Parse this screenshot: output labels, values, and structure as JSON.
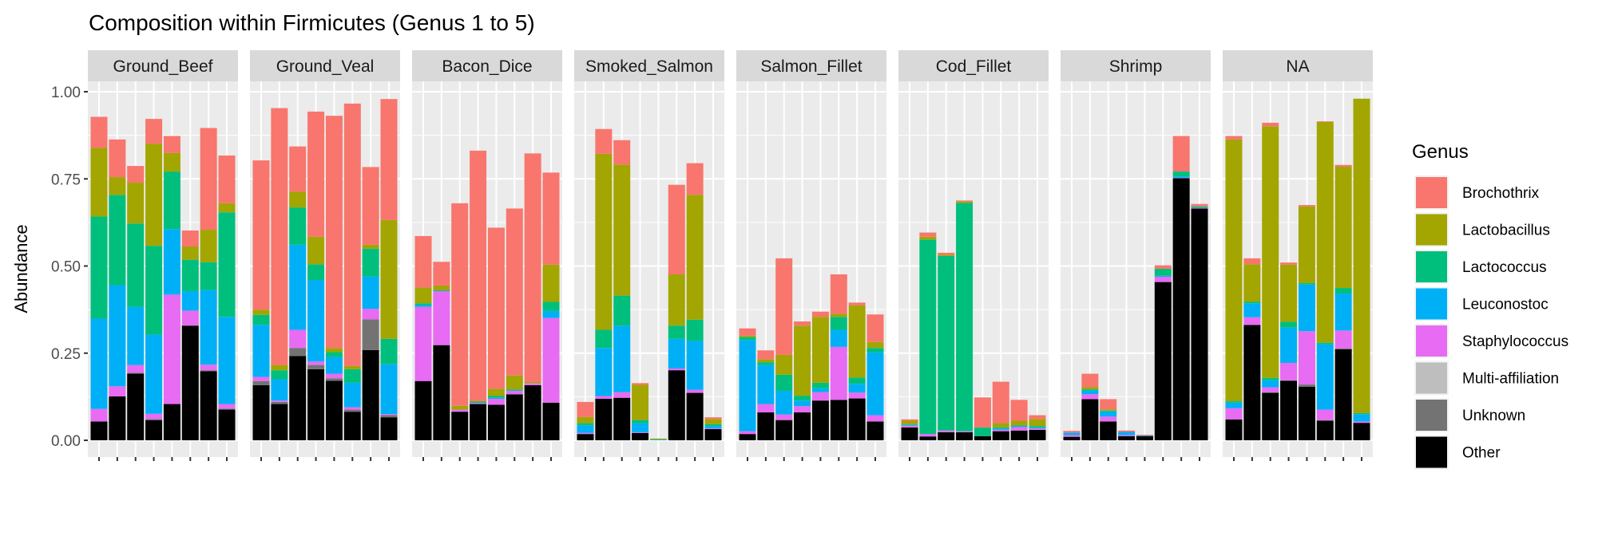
{
  "chart_data": {
    "type": "bar",
    "stacked": true,
    "title": "Composition within Firmicutes (Genus 1 to 5)",
    "xlabel": "",
    "ylabel": "Abundance",
    "ylim": [
      0,
      1
    ],
    "yticks": [
      "0.00",
      "0.25",
      "0.50",
      "0.75",
      "1.00"
    ],
    "ytick_values": [
      0,
      0.25,
      0.5,
      0.75,
      1.0
    ],
    "legend": {
      "title": "Genus",
      "placement": "right",
      "entries": [
        "Brochothrix",
        "Lactobacillus",
        "Lactococcus",
        "Leuconostoc",
        "Staphylococcus",
        "Multi-affiliation",
        "Unknown",
        "Other"
      ]
    },
    "colors": {
      "Brochothrix": "#F8766D",
      "Lactobacillus": "#A3A500",
      "Lactococcus": "#00BF7D",
      "Leuconostoc": "#00B0F6",
      "Staphylococcus": "#E76BF3",
      "Multi-affiliation": "#BEBEBE",
      "Unknown": "#737373",
      "Other": "#000000"
    },
    "stack_order_bottom_up": [
      "Other",
      "Unknown",
      "Multi-affiliation",
      "Staphylococcus",
      "Leuconostoc",
      "Lactococcus",
      "Lactobacillus",
      "Brochothrix"
    ],
    "note": "cumulative abundance at top of each stacked genus segment, bottom-up order",
    "facets": [
      {
        "name": "Ground_Beef",
        "bars": [
          [
            0.054,
            0.054,
            0.054,
            0.09,
            0.349,
            0.642,
            0.839,
            0.928
          ],
          [
            0.126,
            0.126,
            0.126,
            0.155,
            0.445,
            0.704,
            0.755,
            0.863
          ],
          [
            0.191,
            0.194,
            0.194,
            0.216,
            0.383,
            0.622,
            0.739,
            0.787
          ],
          [
            0.058,
            0.061,
            0.061,
            0.076,
            0.303,
            0.558,
            0.851,
            0.922
          ],
          [
            0.104,
            0.104,
            0.104,
            0.418,
            0.606,
            0.771,
            0.824,
            0.873
          ],
          [
            0.329,
            0.329,
            0.329,
            0.372,
            0.428,
            0.518,
            0.556,
            0.602
          ],
          [
            0.198,
            0.201,
            0.201,
            0.217,
            0.431,
            0.511,
            0.604,
            0.896
          ],
          [
            0.088,
            0.091,
            0.091,
            0.104,
            0.354,
            0.654,
            0.68,
            0.817
          ]
        ]
      },
      {
        "name": "Ground_Veal",
        "bars": [
          [
            0.158,
            0.17,
            0.17,
            0.182,
            0.331,
            0.36,
            0.375,
            0.803
          ],
          [
            0.104,
            0.11,
            0.11,
            0.114,
            0.175,
            0.201,
            0.216,
            0.953
          ],
          [
            0.242,
            0.265,
            0.265,
            0.317,
            0.561,
            0.668,
            0.713,
            0.843
          ],
          [
            0.204,
            0.216,
            0.216,
            0.226,
            0.46,
            0.505,
            0.584,
            0.943
          ],
          [
            0.171,
            0.178,
            0.178,
            0.191,
            0.239,
            0.253,
            0.265,
            0.931
          ],
          [
            0.082,
            0.088,
            0.088,
            0.095,
            0.165,
            0.204,
            0.213,
            0.966
          ],
          [
            0.259,
            0.347,
            0.347,
            0.377,
            0.47,
            0.55,
            0.561,
            0.784
          ],
          [
            0.066,
            0.072,
            0.072,
            0.075,
            0.218,
            0.291,
            0.632,
            0.979
          ]
        ]
      },
      {
        "name": "Bacon_Dice",
        "bars": [
          [
            0.17,
            0.17,
            0.17,
            0.383,
            0.388,
            0.393,
            0.438,
            0.586
          ],
          [
            0.273,
            0.273,
            0.273,
            0.428,
            0.428,
            0.431,
            0.444,
            0.512
          ],
          [
            0.082,
            0.082,
            0.082,
            0.088,
            0.088,
            0.088,
            0.099,
            0.68
          ],
          [
            0.104,
            0.104,
            0.104,
            0.107,
            0.107,
            0.111,
            0.113,
            0.831
          ],
          [
            0.102,
            0.102,
            0.102,
            0.119,
            0.122,
            0.127,
            0.148,
            0.61
          ],
          [
            0.132,
            0.132,
            0.132,
            0.142,
            0.143,
            0.146,
            0.186,
            0.665
          ],
          [
            0.158,
            0.158,
            0.158,
            0.164,
            0.164,
            0.164,
            0.168,
            0.823
          ],
          [
            0.108,
            0.108,
            0.108,
            0.351,
            0.371,
            0.397,
            0.504,
            0.768
          ]
        ]
      },
      {
        "name": "Smoked_Salmon",
        "bars": [
          [
            0.018,
            0.018,
            0.018,
            0.021,
            0.043,
            0.049,
            0.067,
            0.11
          ],
          [
            0.119,
            0.119,
            0.119,
            0.127,
            0.265,
            0.317,
            0.822,
            0.893
          ],
          [
            0.122,
            0.122,
            0.122,
            0.138,
            0.329,
            0.415,
            0.791,
            0.861
          ],
          [
            0.021,
            0.021,
            0.021,
            0.023,
            0.049,
            0.058,
            0.159,
            0.164
          ],
          [
            0.0,
            0.0,
            0.0,
            0.0,
            0.002,
            0.002,
            0.005,
            0.005
          ],
          [
            0.201,
            0.201,
            0.201,
            0.206,
            0.291,
            0.329,
            0.476,
            0.733
          ],
          [
            0.136,
            0.136,
            0.136,
            0.145,
            0.285,
            0.346,
            0.704,
            0.795
          ],
          [
            0.032,
            0.032,
            0.032,
            0.034,
            0.041,
            0.046,
            0.061,
            0.066
          ]
        ]
      },
      {
        "name": "Salmon_Fillet",
        "bars": [
          [
            0.018,
            0.018,
            0.018,
            0.026,
            0.288,
            0.296,
            0.3,
            0.321
          ],
          [
            0.08,
            0.08,
            0.08,
            0.104,
            0.216,
            0.224,
            0.232,
            0.258
          ],
          [
            0.058,
            0.058,
            0.058,
            0.074,
            0.142,
            0.188,
            0.245,
            0.522
          ],
          [
            0.08,
            0.08,
            0.08,
            0.098,
            0.114,
            0.128,
            0.329,
            0.341
          ],
          [
            0.114,
            0.114,
            0.114,
            0.138,
            0.149,
            0.165,
            0.354,
            0.369
          ],
          [
            0.116,
            0.116,
            0.116,
            0.268,
            0.317,
            0.354,
            0.363,
            0.476
          ],
          [
            0.12,
            0.12,
            0.12,
            0.137,
            0.162,
            0.18,
            0.387,
            0.395
          ],
          [
            0.054,
            0.054,
            0.054,
            0.072,
            0.252,
            0.265,
            0.282,
            0.361
          ]
        ]
      },
      {
        "name": "Cod_Fillet",
        "bars": [
          [
            0.037,
            0.037,
            0.037,
            0.042,
            0.044,
            0.046,
            0.056,
            0.06
          ],
          [
            0.011,
            0.011,
            0.011,
            0.018,
            0.018,
            0.576,
            0.584,
            0.596
          ],
          [
            0.023,
            0.023,
            0.023,
            0.028,
            0.028,
            0.529,
            0.532,
            0.538
          ],
          [
            0.023,
            0.023,
            0.023,
            0.026,
            0.026,
            0.681,
            0.685,
            0.688
          ],
          [
            0.012,
            0.012,
            0.012,
            0.012,
            0.012,
            0.037,
            0.037,
            0.123
          ],
          [
            0.026,
            0.026,
            0.026,
            0.03,
            0.034,
            0.037,
            0.049,
            0.168
          ],
          [
            0.028,
            0.028,
            0.028,
            0.038,
            0.04,
            0.043,
            0.056,
            0.116
          ],
          [
            0.03,
            0.03,
            0.03,
            0.034,
            0.037,
            0.041,
            0.061,
            0.072
          ]
        ]
      },
      {
        "name": "Shrimp",
        "bars": [
          [
            0.01,
            0.01,
            0.01,
            0.015,
            0.022,
            0.022,
            0.022,
            0.027
          ],
          [
            0.118,
            0.118,
            0.118,
            0.132,
            0.143,
            0.146,
            0.153,
            0.191
          ],
          [
            0.054,
            0.054,
            0.054,
            0.068,
            0.083,
            0.085,
            0.089,
            0.118
          ],
          [
            0.012,
            0.012,
            0.012,
            0.015,
            0.024,
            0.024,
            0.024,
            0.028
          ],
          [
            0.012,
            0.012,
            0.012,
            0.012,
            0.014,
            0.014,
            0.014,
            0.016
          ],
          [
            0.454,
            0.454,
            0.454,
            0.469,
            0.472,
            0.492,
            0.492,
            0.502
          ],
          [
            0.752,
            0.752,
            0.752,
            0.753,
            0.757,
            0.771,
            0.771,
            0.873
          ],
          [
            0.665,
            0.665,
            0.665,
            0.667,
            0.667,
            0.671,
            0.671,
            0.678
          ]
        ]
      },
      {
        "name": "NA",
        "bars": [
          [
            0.06,
            0.06,
            0.06,
            0.092,
            0.108,
            0.112,
            0.863,
            0.873
          ],
          [
            0.331,
            0.331,
            0.331,
            0.353,
            0.393,
            0.397,
            0.505,
            0.522
          ],
          [
            0.136,
            0.138,
            0.138,
            0.152,
            0.172,
            0.179,
            0.901,
            0.911
          ],
          [
            0.171,
            0.172,
            0.172,
            0.222,
            0.323,
            0.34,
            0.504,
            0.51
          ],
          [
            0.154,
            0.16,
            0.16,
            0.313,
            0.447,
            0.451,
            0.671,
            0.675
          ],
          [
            0.056,
            0.058,
            0.058,
            0.088,
            0.276,
            0.28,
            0.913,
            0.915
          ],
          [
            0.261,
            0.264,
            0.264,
            0.315,
            0.421,
            0.437,
            0.785,
            0.79
          ],
          [
            0.05,
            0.05,
            0.05,
            0.054,
            0.075,
            0.078,
            0.98,
            0.98
          ]
        ]
      }
    ]
  }
}
